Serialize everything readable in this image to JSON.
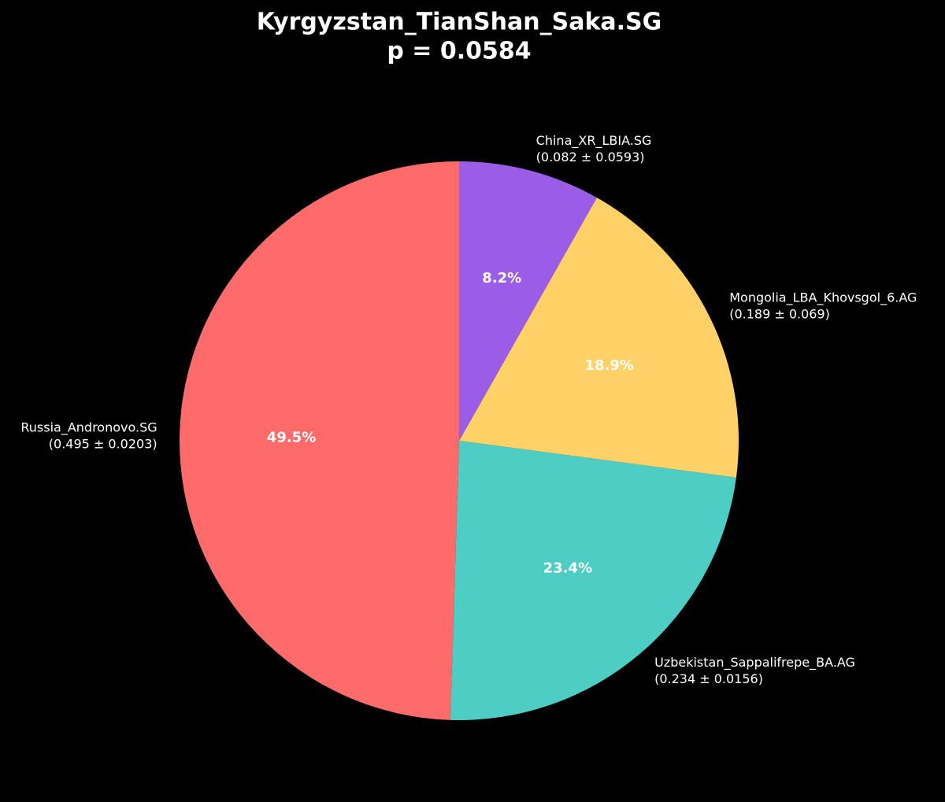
{
  "chart_data": {
    "type": "pie",
    "title": "Kyrgyzstan_TianShan_Saka.SG",
    "subtitle": "p = 0.0584",
    "categories": [
      "Russia_Andronovo.SG",
      "Uzbekistan_Sappalifrepe_BA.AG",
      "Mongolia_LBA_Khovsgol_6.AG",
      "China_XR_LBIA.SG"
    ],
    "details": [
      "(0.495 ± 0.0203)",
      "(0.234 ± 0.0156)",
      "(0.189 ± 0.069)",
      "(0.082 ± 0.0593)"
    ],
    "values": [
      49.5,
      23.4,
      18.9,
      8.2
    ],
    "value_labels": [
      "49.5%",
      "23.4%",
      "18.9%",
      "8.2%"
    ],
    "colors": [
      "#ff6b6b",
      "#4ecdc4",
      "#ffd166",
      "#9b5de5"
    ],
    "start_angle": 90,
    "direction": "counterclockwise"
  }
}
